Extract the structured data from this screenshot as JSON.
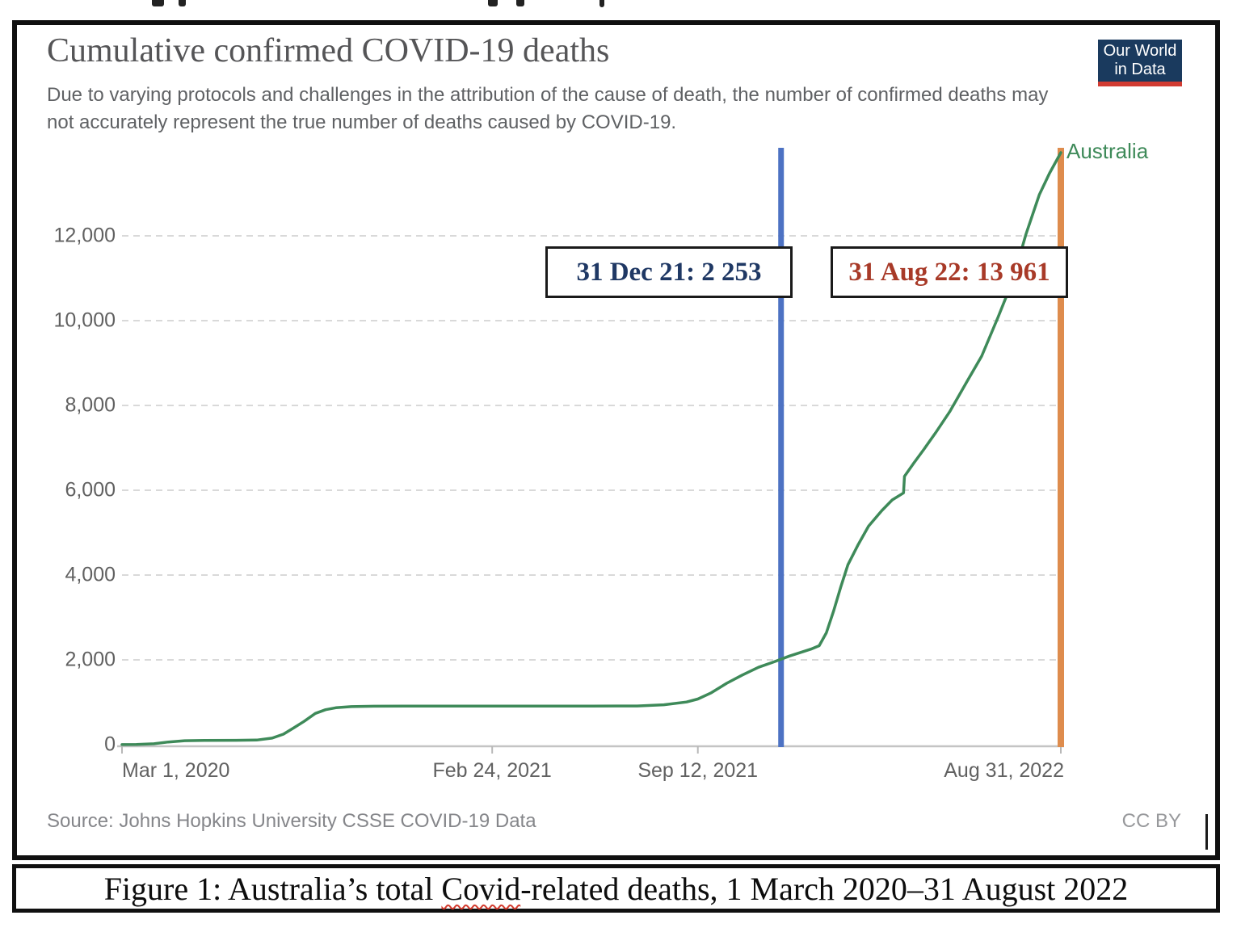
{
  "figure": {
    "title": "Cumulative confirmed COVID-19 deaths",
    "subtitle_line1": "Due to varying protocols and challenges in the attribution of the cause of death, the number of confirmed deaths may",
    "subtitle_line2": "not accurately represent the true number of deaths caused by COVID-19.",
    "logo": {
      "line1": "Our World",
      "line2": "in Data",
      "bg_color": "#1a3a5e",
      "accent_color": "#d23b32"
    },
    "source_label": "Source: Johns Hopkins University CSSE COVID-19 Data",
    "license_label": "CC BY"
  },
  "caption": {
    "prefix": "Figure 1: Australia’s total ",
    "misspelled_word": "Covid",
    "suffix": "-related deaths, 1 March 2020–31 August 2022"
  },
  "chart_data": {
    "type": "line",
    "title": "Cumulative confirmed COVID-19 deaths",
    "xlabel": "",
    "ylabel": "",
    "grid": "dashed horizontal",
    "legend_position": "end-of-line label",
    "x_axis": {
      "start_date": "2020-03-01",
      "end_date": "2022-08-31",
      "tick_labels": [
        "Mar 1, 2020",
        "Feb 24, 2021",
        "Sep 12, 2021",
        "Aug 31, 2022"
      ],
      "tick_dates": [
        "2020-03-01",
        "2021-02-24",
        "2021-09-12",
        "2022-08-31"
      ]
    },
    "y_axis": {
      "ticks": [
        0,
        2000,
        4000,
        6000,
        8000,
        10000,
        12000
      ],
      "tick_labels": [
        "0",
        "2,000",
        "4,000",
        "6,000",
        "8,000",
        "10,000",
        "12,000"
      ],
      "ylim": [
        0,
        14050
      ]
    },
    "series": [
      {
        "name": "Australia",
        "color": "#3e8a59",
        "points": [
          [
            "2020-03-01",
            1
          ],
          [
            "2020-03-15",
            5
          ],
          [
            "2020-04-01",
            21
          ],
          [
            "2020-04-15",
            63
          ],
          [
            "2020-05-01",
            93
          ],
          [
            "2020-05-20",
            100
          ],
          [
            "2020-06-20",
            102
          ],
          [
            "2020-07-10",
            108
          ],
          [
            "2020-07-25",
            155
          ],
          [
            "2020-08-05",
            247
          ],
          [
            "2020-08-15",
            396
          ],
          [
            "2020-08-25",
            549
          ],
          [
            "2020-09-05",
            737
          ],
          [
            "2020-09-15",
            824
          ],
          [
            "2020-09-25",
            870
          ],
          [
            "2020-10-10",
            897
          ],
          [
            "2020-11-01",
            907
          ],
          [
            "2020-12-01",
            908
          ],
          [
            "2021-02-01",
            909
          ],
          [
            "2021-04-01",
            910
          ],
          [
            "2021-06-01",
            910
          ],
          [
            "2021-07-15",
            912
          ],
          [
            "2021-08-10",
            940
          ],
          [
            "2021-09-01",
            1006
          ],
          [
            "2021-09-12",
            1076
          ],
          [
            "2021-09-25",
            1222
          ],
          [
            "2021-10-10",
            1448
          ],
          [
            "2021-10-25",
            1640
          ],
          [
            "2021-11-10",
            1825
          ],
          [
            "2021-11-25",
            1953
          ],
          [
            "2021-12-10",
            2089
          ],
          [
            "2021-12-31",
            2253
          ],
          [
            "2022-01-08",
            2334
          ],
          [
            "2022-01-15",
            2638
          ],
          [
            "2022-01-22",
            3148
          ],
          [
            "2022-01-29",
            3716
          ],
          [
            "2022-02-05",
            4244
          ],
          [
            "2022-02-15",
            4721
          ],
          [
            "2022-02-25",
            5153
          ],
          [
            "2022-03-10",
            5521
          ],
          [
            "2022-03-20",
            5771
          ],
          [
            "2022-03-31",
            5938
          ],
          [
            "2022-04-01",
            6329
          ],
          [
            "2022-04-10",
            6640
          ],
          [
            "2022-04-20",
            6970
          ],
          [
            "2022-05-01",
            7347
          ],
          [
            "2022-05-15",
            7854
          ],
          [
            "2022-06-01",
            8577
          ],
          [
            "2022-06-15",
            9162
          ],
          [
            "2022-07-01",
            10085
          ],
          [
            "2022-07-15",
            10934
          ],
          [
            "2022-07-28",
            12029
          ],
          [
            "2022-08-10",
            12965
          ],
          [
            "2022-08-20",
            13476
          ],
          [
            "2022-08-31",
            13961
          ]
        ]
      }
    ],
    "annotations": {
      "vlines": [
        {
          "label_date": "2021-12-31",
          "color": "#4d72c3",
          "x_frac": 0.702,
          "width": 7
        },
        {
          "label_date": "2022-08-31",
          "color": "#de8c4d",
          "x_frac": 1.0,
          "width": 8
        }
      ],
      "boxes": [
        {
          "label": "31 Dec 21: 2 253",
          "text_color": "#1f3864"
        },
        {
          "label": "31 Aug 22: 13 961",
          "text_color": "#a83a28"
        }
      ]
    }
  }
}
